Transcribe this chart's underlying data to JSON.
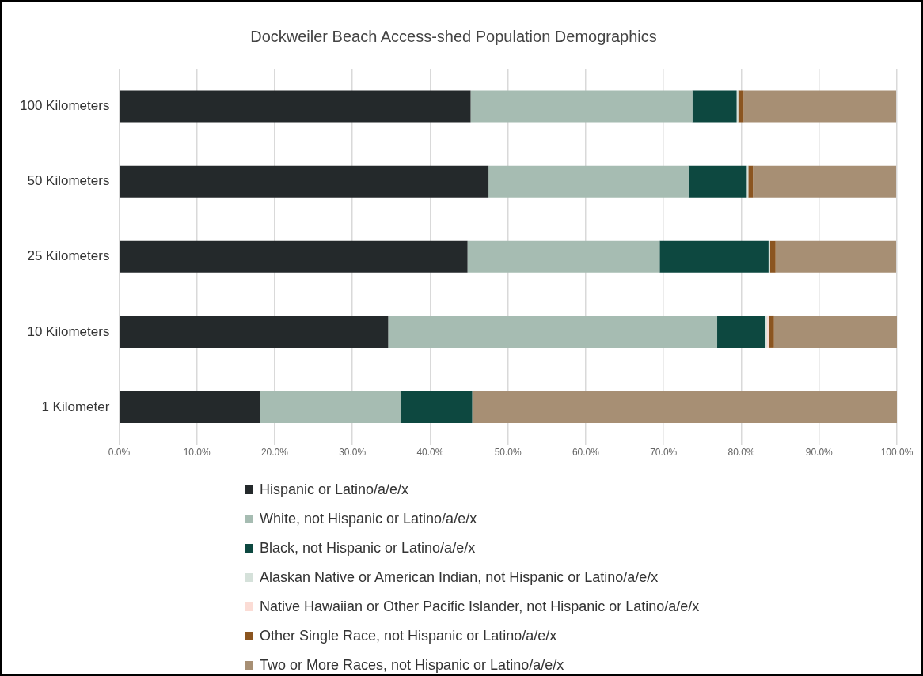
{
  "chart_data": {
    "type": "bar",
    "orientation": "horizontal",
    "stacked": true,
    "title": "Dockweiler Beach Access-shed Population Demographics",
    "categories": [
      "100 Kilometers",
      "50 Kilometers",
      "25 Kilometers",
      "10 Kilometers",
      "1 Kilometer"
    ],
    "series": [
      {
        "name": "Hispanic or Latino/a/e/x",
        "color": "#24292b",
        "values": [
          45.2,
          47.5,
          44.8,
          34.6,
          18.1
        ]
      },
      {
        "name": "White, not Hispanic or Latino/a/e/x",
        "color": "#a6bcb2",
        "values": [
          28.5,
          25.7,
          24.7,
          42.3,
          18.1
        ]
      },
      {
        "name": "Black, not Hispanic or Latino/a/e/x",
        "color": "#0d4840",
        "values": [
          5.7,
          7.5,
          14.0,
          6.2,
          9.2
        ]
      },
      {
        "name": "Alaskan Native or American Indian, not Hispanic or Latino/a/e/x",
        "color": "#d5e1da",
        "values": [
          0.2,
          0.2,
          0.2,
          0.2,
          0
        ]
      },
      {
        "name": "Native Hawaiian or Other Pacific Islander, not Hispanic or Latino/a/e/x",
        "color": "#fbdcd5",
        "values": [
          null,
          null,
          null,
          0.2,
          0
        ]
      },
      {
        "name": "Other Single Race, not Hispanic or Latino/a/e/x",
        "color": "#8b5520",
        "values": [
          0.7,
          0.6,
          0.7,
          0.7,
          0
        ]
      },
      {
        "name": "Two or More Races, not Hispanic or Latino/a/e/x",
        "color": "#a78f74",
        "values": [
          19.6,
          18.4,
          15.5,
          15.8,
          54.6
        ]
      }
    ],
    "xlim": [
      0,
      100
    ],
    "xticks": [
      {
        "value": 0,
        "label": "0.0%"
      },
      {
        "value": 10,
        "label": "10.0%"
      },
      {
        "value": 20,
        "label": "20.0%"
      },
      {
        "value": 30,
        "label": "30.0%"
      },
      {
        "value": 40,
        "label": "40.0%"
      },
      {
        "value": 50,
        "label": "50.0%"
      },
      {
        "value": 60,
        "label": "60.0%"
      },
      {
        "value": 70,
        "label": "70.0%"
      },
      {
        "value": 80,
        "label": "80.0%"
      },
      {
        "value": 90,
        "label": "90.0%"
      },
      {
        "value": 100,
        "label": "100.0%"
      }
    ],
    "grid": "x",
    "legend": "bottom"
  }
}
